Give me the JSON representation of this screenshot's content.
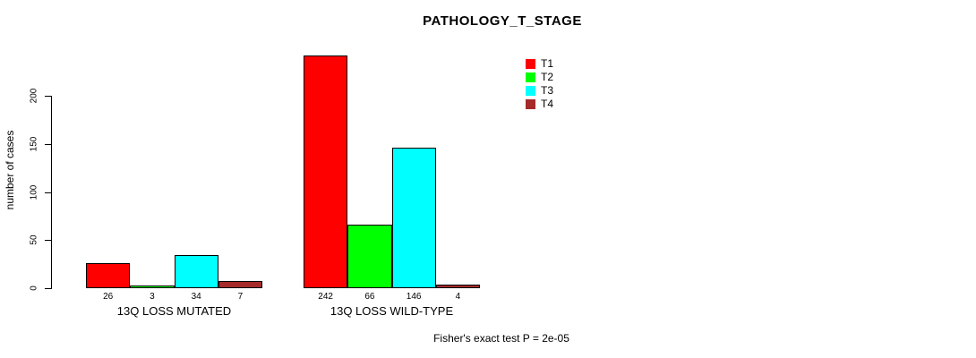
{
  "title": "PATHOLOGY_T_STAGE",
  "chart_data": {
    "type": "bar",
    "title": "PATHOLOGY_T_STAGE",
    "subtitle": "",
    "xlabel": "",
    "ylabel": "number of cases",
    "categories": [
      "13Q LOSS MUTATED",
      "13Q LOSS WILD-TYPE"
    ],
    "series": [
      {
        "name": "T1",
        "color": "#FF0000",
        "values": [
          26,
          242
        ]
      },
      {
        "name": "T2",
        "color": "#00FF00",
        "values": [
          3,
          66
        ]
      },
      {
        "name": "T3",
        "color": "#00FFFF",
        "values": [
          34,
          146
        ]
      },
      {
        "name": "T4",
        "color": "#A52A2A",
        "values": [
          7,
          4
        ]
      }
    ],
    "bar_value_labels": [
      [
        "26",
        "3",
        "34",
        "7"
      ],
      [
        "242",
        "66",
        "146",
        "4"
      ]
    ],
    "yticks": [
      0,
      50,
      100,
      150,
      200
    ],
    "ylim": [
      0,
      200
    ],
    "grid": false,
    "legend_position": "top-right",
    "annotation": "Fisher's exact test P = 2e-05"
  }
}
